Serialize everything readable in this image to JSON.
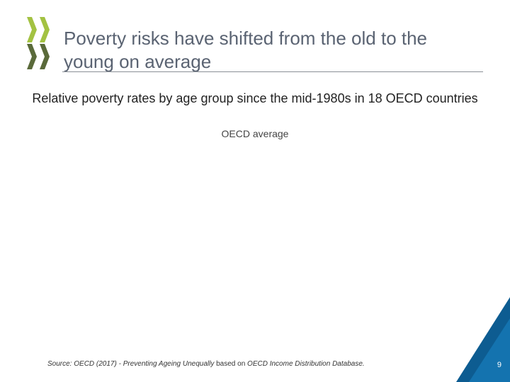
{
  "slide": {
    "title": "Poverty risks have shifted from the old to the young on average",
    "subtitle": "Relative poverty rates by age group since the mid-1980s in 18 OECD countries",
    "chart_label": "OECD average",
    "source": {
      "prefix": "Source: OECD (2017) - ",
      "title": "Preventing Ageing Unequally",
      "middle": " based on ",
      "database": "OECD Income Distribution Database."
    },
    "page_number": "9"
  },
  "colors": {
    "logo_light": "#a3c242",
    "logo_dark": "#5a6a3a",
    "corner_dark": "#0d5c91",
    "corner_light": "#1c87c9"
  },
  "icons": {
    "logo": "oecd-chevron-logo",
    "corner": "corner-triangle-decoration"
  }
}
